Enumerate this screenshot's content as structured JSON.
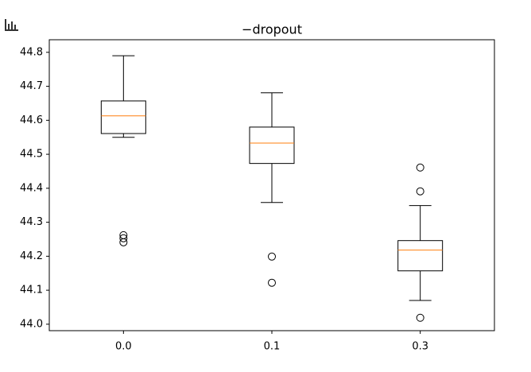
{
  "chart_data": {
    "type": "box",
    "title": "−dropout",
    "categories": [
      "0.0",
      "0.1",
      "0.3"
    ],
    "boxes": [
      {
        "whislo": 44.55,
        "q1": 44.561,
        "med": 44.613,
        "q3": 44.657,
        "whishi": 44.79,
        "fliers": [
          44.262,
          44.253,
          44.241
        ]
      },
      {
        "whislo": 44.358,
        "q1": 44.473,
        "med": 44.533,
        "q3": 44.58,
        "whishi": 44.681,
        "fliers": [
          44.199,
          44.122
        ]
      },
      {
        "whislo": 44.07,
        "q1": 44.157,
        "med": 44.218,
        "q3": 44.246,
        "whishi": 44.349,
        "fliers": [
          44.461,
          44.391,
          44.019
        ]
      }
    ],
    "color": "#000000",
    "median_color": "#ff7f0e",
    "ylim": [
      43.981,
      44.837
    ],
    "yticks": [
      {
        "value": 44,
        "label": "44.0"
      },
      44.1,
      44.2,
      44.3,
      44.4,
      44.5,
      44.6,
      44.7,
      44.8
    ],
    "grid": false
  }
}
